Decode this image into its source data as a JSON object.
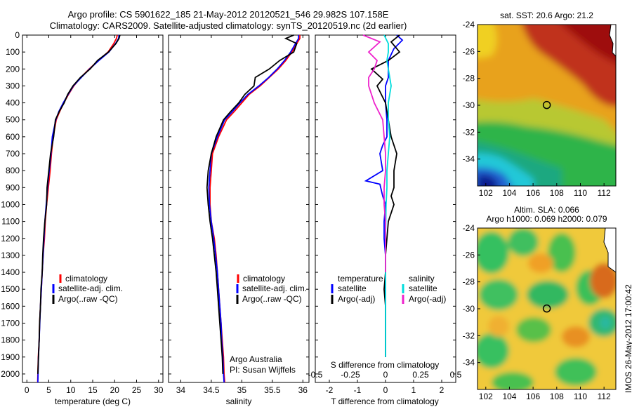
{
  "titles": {
    "line1": "Argo profile: CS 5901622_185 21-May-2012 20120521_546 29.982S 107.158E",
    "line2": "Climatology: CARS2009. Satellite-adjusted climatology: synTS_20120519.nc (2d earlier)"
  },
  "colors": {
    "climatology": "#ff0000",
    "satellite": "#0000ff",
    "argo": "#000000",
    "sal_satellite": "#00dddd",
    "sal_argo": "#ee22cc"
  },
  "legend_profile": {
    "climatology": "climatology",
    "satellite": "satellite-adj. clim.",
    "argo": "Argo(..raw -QC)"
  },
  "legend_diff": {
    "temperature": "temperature",
    "salinity": "salinity",
    "satellite": "satellite",
    "argo": "Argo(-adj)"
  },
  "credit": {
    "line1": "Argo Australia",
    "line2": "PI: Susan Wijffels"
  },
  "map_sst": {
    "title": "sat. SST: 20.6 Argo: 21.2"
  },
  "map_sla": {
    "title1": "Altim. SLA: 0.066",
    "title2": "Argo h1000: 0.069 h2000: 0.079"
  },
  "stamp": "IMOS 26-May-2012 17:00:42",
  "chart_data": [
    {
      "type": "line",
      "id": "temperature",
      "xlabel": "temperature (deg C)",
      "ylabel": "",
      "xlim": [
        -1,
        31
      ],
      "ylim": [
        2050,
        0
      ],
      "y_reversed": true,
      "xticks": [
        0,
        5,
        10,
        15,
        20,
        25,
        30
      ],
      "yticks": [
        0,
        100,
        200,
        300,
        400,
        500,
        600,
        700,
        800,
        900,
        1000,
        1100,
        1200,
        1300,
        1400,
        1500,
        1600,
        1700,
        1800,
        1900,
        2000
      ],
      "series": [
        {
          "name": "climatology",
          "color": "#ff0000",
          "x": [
            20.6,
            20.4,
            19.8,
            18.5,
            16.3,
            14.2,
            12.3,
            10.7,
            9.5,
            8.4,
            7.5,
            6.7,
            6.0,
            5.6,
            5.3,
            4.9,
            4.5,
            4.2,
            4.0,
            3.7,
            3.5,
            3.3,
            3.1,
            2.9,
            2.8,
            2.6,
            2.5,
            2.45
          ],
          "y": [
            0,
            20,
            50,
            100,
            150,
            200,
            250,
            300,
            350,
            400,
            450,
            500,
            600,
            700,
            800,
            900,
            1000,
            1100,
            1200,
            1300,
            1400,
            1500,
            1600,
            1700,
            1800,
            1900,
            2000,
            2050
          ]
        },
        {
          "name": "satellite-adj. clim.",
          "color": "#0000ff",
          "x": [
            21.0,
            20.9,
            20.2,
            18.7,
            16.4,
            14.3,
            12.4,
            10.6,
            9.4,
            8.3,
            7.3,
            6.6,
            5.8,
            5.5,
            5.1,
            4.7,
            4.4,
            4.1,
            3.9,
            3.7,
            3.5,
            3.3,
            3.1,
            2.95,
            2.8,
            2.65,
            2.55,
            2.5
          ],
          "y": [
            0,
            20,
            50,
            100,
            150,
            200,
            250,
            300,
            350,
            400,
            450,
            500,
            600,
            700,
            800,
            900,
            1000,
            1100,
            1200,
            1300,
            1400,
            1500,
            1600,
            1700,
            1800,
            1900,
            2000,
            2050
          ]
        },
        {
          "name": "Argo(..raw -QC)",
          "color": "#000000",
          "x": [
            21.2,
            21.0,
            20.3,
            18.6,
            16.1,
            14.4,
            12.2,
            10.5,
            9.3,
            8.5,
            7.4,
            6.5,
            6.1,
            5.4,
            5.0,
            4.6,
            4.5,
            4.1,
            3.8,
            3.6,
            3.5,
            3.2,
            3.1,
            2.9,
            2.8,
            2.65,
            2.5
          ],
          "y": [
            0,
            20,
            50,
            100,
            150,
            200,
            250,
            300,
            350,
            400,
            450,
            500,
            600,
            700,
            800,
            900,
            1000,
            1100,
            1200,
            1300,
            1400,
            1500,
            1600,
            1700,
            1800,
            1900,
            2000
          ]
        }
      ]
    },
    {
      "type": "line",
      "id": "salinity",
      "xlabel": "salinity",
      "ylabel": "",
      "xlim": [
        33.8,
        36.1
      ],
      "ylim": [
        2050,
        0
      ],
      "y_reversed": true,
      "xticks": [
        34,
        34.5,
        35,
        35.5,
        36
      ],
      "series": [
        {
          "name": "climatology",
          "color": "#ff0000",
          "x": [
            35.95,
            35.95,
            35.9,
            35.82,
            35.72,
            35.6,
            35.45,
            35.3,
            35.12,
            35.0,
            34.88,
            34.75,
            34.62,
            34.52,
            34.5,
            34.48,
            34.48,
            34.5,
            34.55,
            34.58,
            34.6,
            34.62,
            34.64,
            34.66,
            34.68,
            34.7,
            34.71,
            34.72
          ],
          "y": [
            0,
            20,
            50,
            100,
            150,
            200,
            250,
            300,
            350,
            400,
            450,
            500,
            600,
            700,
            800,
            900,
            1000,
            1100,
            1200,
            1300,
            1400,
            1500,
            1600,
            1700,
            1800,
            1900,
            2000,
            2050
          ]
        },
        {
          "name": "satellite-adj. clim.",
          "color": "#0000ff",
          "x": [
            35.93,
            35.93,
            35.88,
            35.8,
            35.7,
            35.58,
            35.44,
            35.28,
            35.1,
            34.97,
            34.85,
            34.72,
            34.6,
            34.5,
            34.48,
            34.46,
            34.47,
            34.5,
            34.54,
            34.57,
            34.6,
            34.62,
            34.64,
            34.66,
            34.67,
            34.69,
            34.7,
            34.71
          ],
          "y": [
            0,
            20,
            50,
            100,
            150,
            200,
            250,
            300,
            350,
            400,
            450,
            500,
            600,
            700,
            800,
            900,
            1000,
            1100,
            1200,
            1300,
            1400,
            1500,
            1600,
            1700,
            1800,
            1900,
            2000,
            2050
          ]
        },
        {
          "name": "Argo(..raw -QC)",
          "color": "#000000",
          "x": [
            35.85,
            35.72,
            35.9,
            35.85,
            35.62,
            35.45,
            35.22,
            35.2,
            35.05,
            34.95,
            34.82,
            34.7,
            34.58,
            34.5,
            34.45,
            34.43,
            34.45,
            34.48,
            34.52,
            34.55,
            34.58,
            34.6,
            34.62,
            34.64,
            34.66,
            34.68,
            34.69
          ],
          "y": [
            0,
            20,
            50,
            100,
            150,
            200,
            250,
            300,
            350,
            400,
            450,
            500,
            600,
            700,
            800,
            900,
            1000,
            1100,
            1200,
            1300,
            1400,
            1500,
            1600,
            1700,
            1800,
            1900,
            2000
          ]
        }
      ]
    },
    {
      "type": "line",
      "id": "differences",
      "xlabel": "T difference from climatology",
      "xlabel_top": "S difference from climatology",
      "xlim": [
        -2.5,
        2.5
      ],
      "ylim": [
        2050,
        0
      ],
      "y_reversed": true,
      "xticks": [
        -2,
        -1,
        0,
        1,
        2
      ],
      "xticks_top": [
        -0.5,
        -0.25,
        0,
        0.25,
        0.5
      ],
      "xticklabels_top": [
        "-0.5",
        "-0.25",
        "0",
        "0.25",
        "0.5"
      ],
      "series": [
        {
          "name": "temperature satellite",
          "color": "#0000ff",
          "x": [
            0.4,
            0.6,
            0.3,
            0.1,
            0.1,
            0.1,
            0.0,
            0.0,
            0.05,
            0.05,
            -0.1,
            -0.2,
            -0.1,
            -0.7,
            -0.2,
            -0.1,
            0.0,
            -0.05,
            -0.05,
            0.0,
            0.0,
            0.0,
            0.0,
            0.0,
            0.0,
            0.0
          ],
          "y": [
            0,
            30,
            80,
            150,
            200,
            250,
            300,
            400,
            500,
            600,
            650,
            700,
            800,
            860,
            880,
            950,
            1000,
            1100,
            1200,
            1300,
            1400,
            1500,
            1600,
            1700,
            1800,
            1900
          ]
        },
        {
          "name": "temperature Argo(-adj)",
          "color": "#000000",
          "x": [
            0.5,
            0.2,
            0.5,
            0.1,
            -0.5,
            -0.1,
            -0.3,
            0.0,
            0.1,
            0.2,
            0.4,
            0.3,
            0.3,
            0.2,
            0.3,
            0.1,
            0.05,
            0.0,
            0.0,
            -0.05,
            0.0,
            0.0,
            0.0
          ],
          "y": [
            0,
            40,
            100,
            150,
            200,
            260,
            300,
            400,
            500,
            600,
            700,
            800,
            900,
            950,
            1000,
            1100,
            1200,
            1300,
            1400,
            1500,
            1600,
            1800,
            1900
          ]
        },
        {
          "name": "salinity satellite",
          "color": "#00dddd",
          "x": [
            -0.05,
            0.1,
            0.1,
            0.05,
            0.1,
            0.2,
            0.1,
            0.1,
            0.15,
            0.1,
            0.05,
            0.05,
            0.02,
            0.0,
            0.0,
            0.0,
            0.0
          ],
          "y": [
            0,
            50,
            100,
            150,
            200,
            300,
            400,
            500,
            600,
            700,
            800,
            900,
            1000,
            1200,
            1400,
            1600,
            1900
          ]
        },
        {
          "name": "salinity Argo(-adj)",
          "color": "#ee22cc",
          "x": [
            -0.8,
            -0.2,
            -0.6,
            -0.3,
            -0.4,
            -0.6,
            -0.6,
            -0.4,
            -0.1,
            -0.05,
            0.0,
            0.0,
            -0.05,
            -0.05,
            0.0,
            0.0,
            0.0
          ],
          "y": [
            0,
            40,
            100,
            150,
            200,
            250,
            300,
            400,
            500,
            600,
            700,
            800,
            900,
            1000,
            1100,
            1200,
            1400
          ]
        }
      ]
    },
    {
      "type": "heatmap",
      "id": "sst_map",
      "title": "sat. SST: 20.6 Argo: 21.2",
      "xlim": [
        101.3,
        113
      ],
      "ylim": [
        -36,
        -24
      ],
      "xticks": [
        102,
        104,
        106,
        108,
        110,
        112
      ],
      "yticks": [
        -24,
        -26,
        -28,
        -30,
        -32,
        -34
      ],
      "marker": {
        "lon": 107.158,
        "lat": -29.982
      }
    },
    {
      "type": "heatmap",
      "id": "sla_map",
      "title": "Altim. SLA: 0.066  Argo h1000: 0.069 h2000: 0.079",
      "xlim": [
        101.3,
        113
      ],
      "ylim": [
        -36,
        -24
      ],
      "xticks": [
        102,
        104,
        106,
        108,
        110,
        112
      ],
      "yticks": [
        -24,
        -26,
        -28,
        -30,
        -32,
        -34
      ],
      "marker": {
        "lon": 107.158,
        "lat": -29.982
      }
    }
  ]
}
